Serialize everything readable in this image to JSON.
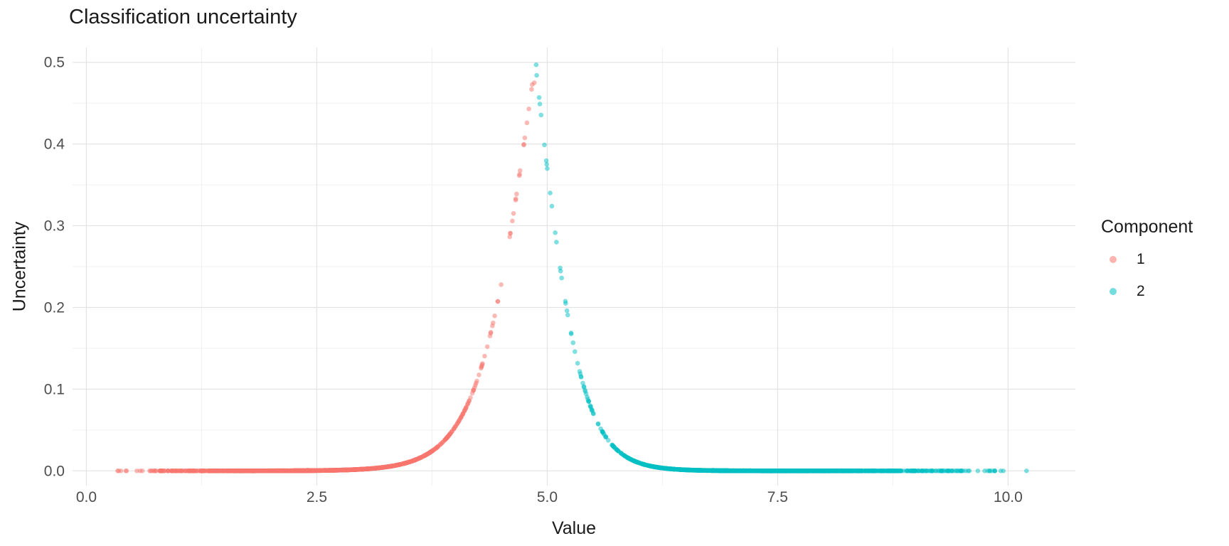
{
  "page": {
    "background": "#ffffff"
  },
  "chart_data": {
    "type": "scatter",
    "title": "Classification uncertainty",
    "xlabel": "Value",
    "ylabel": "Uncertainty",
    "xlim": [
      -0.15,
      10.73
    ],
    "ylim": [
      -0.018,
      0.518
    ],
    "x_ticks": {
      "values": [
        0.0,
        2.5,
        5.0,
        7.5,
        10.0
      ],
      "labels": [
        "0.0",
        "2.5",
        "5.0",
        "7.5",
        "10.0"
      ]
    },
    "y_ticks": {
      "values": [
        0.0,
        0.1,
        0.2,
        0.3,
        0.4,
        0.5
      ],
      "labels": [
        "0.0",
        "0.1",
        "0.2",
        "0.3",
        "0.4",
        "0.5"
      ]
    },
    "grid": {
      "major": true,
      "minor": true,
      "major_color": "#e3e3e3",
      "minor_color": "#f1f1f1",
      "x_minor": [
        1.25,
        3.75,
        6.25,
        8.75
      ],
      "y_minor": [
        0.05,
        0.15,
        0.25,
        0.35,
        0.45
      ]
    },
    "legend": {
      "title": "Component",
      "position": "right",
      "entries": [
        {
          "label": "1",
          "color": "#F8766D"
        },
        {
          "label": "2",
          "color": "#00BFC4"
        }
      ]
    },
    "point_style": {
      "radius": 3.3,
      "opacity": 0.5
    },
    "model": {
      "description": "Classification uncertainty of a two-component 1-D mixture: uncertainty = min(p, 1-p) of the component posterior, peaking at 0.5 at the decision boundary near x = 4.87; near zero far from the boundary.",
      "decision_boundary_x": 4.87,
      "uncertainty_peak": 0.5,
      "uncertainty_curve": {
        "left_slope": 3.3,
        "right_slope": 4.1
      },
      "samples": [
        {
          "component": "1",
          "n": 1500,
          "x_mean": 2.6,
          "x_sd": 0.85,
          "x_min": 0.28,
          "x_max": 4.87
        },
        {
          "component": "2",
          "n": 1500,
          "x_mean": 7.3,
          "x_sd": 0.95,
          "x_min": 4.87,
          "x_max": 10.3
        }
      ],
      "seed": 42
    },
    "series": [
      {
        "name": "1",
        "color": "#F8766D",
        "points": [
          [
            0.35,
            0.0
          ],
          [
            0.8,
            0.0
          ],
          [
            1.2,
            0.0
          ],
          [
            1.6,
            0.0
          ],
          [
            2.0,
            0.0
          ],
          [
            2.4,
            0.001
          ],
          [
            2.8,
            0.001
          ],
          [
            3.2,
            0.004
          ],
          [
            3.5,
            0.011
          ],
          [
            3.8,
            0.028
          ],
          [
            4.0,
            0.054
          ],
          [
            4.2,
            0.099
          ],
          [
            4.35,
            0.152
          ],
          [
            4.5,
            0.228
          ],
          [
            4.6,
            0.291
          ],
          [
            4.7,
            0.363
          ],
          [
            4.78,
            0.426
          ],
          [
            4.83,
            0.467
          ],
          [
            4.86,
            0.475
          ]
        ]
      },
      {
        "name": "2",
        "color": "#00BFC4",
        "points": [
          [
            4.88,
            0.497
          ],
          [
            4.92,
            0.449
          ],
          [
            4.97,
            0.399
          ],
          [
            5.0,
            0.37
          ],
          [
            5.05,
            0.324
          ],
          [
            5.1,
            0.28
          ],
          [
            5.2,
            0.205
          ],
          [
            5.3,
            0.146
          ],
          [
            5.45,
            0.085
          ],
          [
            5.6,
            0.048
          ],
          [
            5.8,
            0.022
          ],
          [
            6.0,
            0.01
          ],
          [
            6.3,
            0.003
          ],
          [
            6.8,
            0.001
          ],
          [
            7.3,
            0.0
          ],
          [
            7.8,
            0.0
          ],
          [
            8.3,
            0.0
          ],
          [
            8.8,
            0.0
          ],
          [
            9.3,
            0.0
          ],
          [
            9.8,
            0.0
          ],
          [
            10.2,
            0.0
          ]
        ]
      }
    ]
  }
}
